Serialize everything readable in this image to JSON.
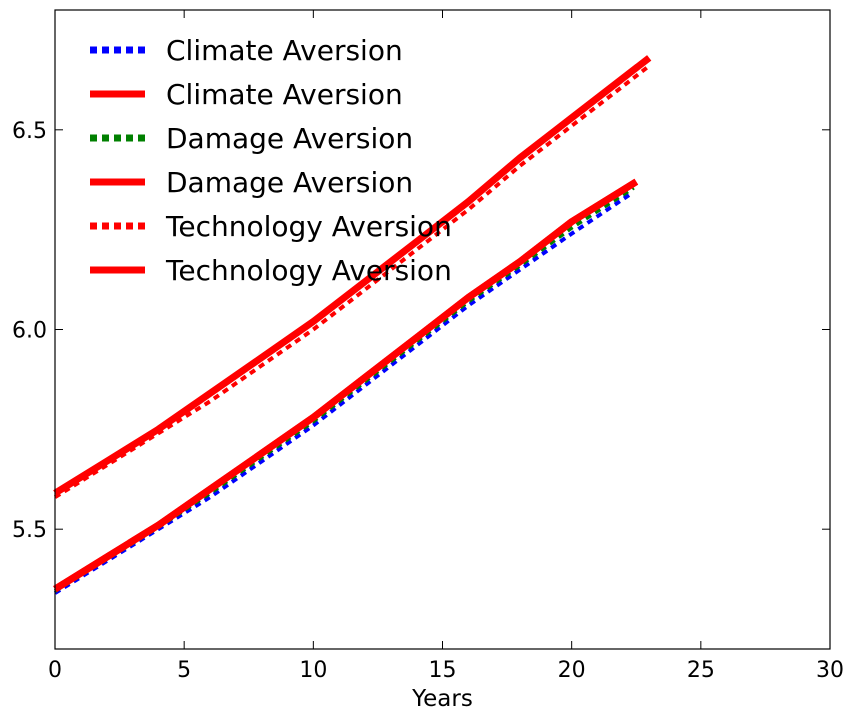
{
  "chart_data": {
    "type": "line",
    "title": "",
    "xlabel": "Years",
    "ylabel": "",
    "xlim": [
      0,
      30
    ],
    "ylim": [
      5.2,
      6.8
    ],
    "xticks": [
      0,
      5,
      10,
      15,
      20,
      25,
      30
    ],
    "yticks": [
      5.5,
      6.0,
      6.5
    ],
    "xtick_labels": [
      "0",
      "5",
      "10",
      "15",
      "20",
      "25",
      "30"
    ],
    "ytick_labels": [
      "5.5",
      "6.0",
      "6.5"
    ],
    "grid": false,
    "legend_position": "top-left",
    "series": [
      {
        "name": "Climate Aversion",
        "color": "#0000ff",
        "style": "dotted",
        "x": [
          0,
          2,
          4,
          6,
          8,
          10,
          12,
          14,
          16,
          18,
          20,
          22.3
        ],
        "y": [
          5.34,
          5.42,
          5.5,
          5.58,
          5.67,
          5.76,
          5.86,
          5.96,
          6.06,
          6.15,
          6.24,
          6.34
        ]
      },
      {
        "name": "Climate Aversion",
        "color": "#ff0000",
        "style": "solid",
        "x": [
          0,
          2,
          4,
          6,
          8,
          10,
          12,
          14,
          16,
          18,
          20,
          22.5
        ],
        "y": [
          5.35,
          5.43,
          5.51,
          5.6,
          5.69,
          5.78,
          5.88,
          5.98,
          6.08,
          6.17,
          6.27,
          6.37
        ]
      },
      {
        "name": "Damage Aversion",
        "color": "#008000",
        "style": "dotted",
        "x": [
          0,
          2,
          4,
          6,
          8,
          10,
          12,
          14,
          16,
          18,
          20,
          22.4
        ],
        "y": [
          5.345,
          5.425,
          5.505,
          5.59,
          5.68,
          5.77,
          5.87,
          5.97,
          6.07,
          6.16,
          6.255,
          6.355
        ]
      },
      {
        "name": "Damage Aversion",
        "color": "#ff0000",
        "style": "solid",
        "x": [
          0,
          2,
          4,
          6,
          8,
          10,
          12,
          14,
          16,
          18,
          20,
          22.5
        ],
        "y": [
          5.35,
          5.43,
          5.51,
          5.6,
          5.69,
          5.78,
          5.88,
          5.98,
          6.08,
          6.17,
          6.27,
          6.37
        ]
      },
      {
        "name": "Technology Aversion",
        "color": "#ff0000",
        "style": "dotted",
        "x": [
          0,
          2,
          4,
          6,
          8,
          10,
          12,
          14,
          16,
          18,
          20,
          23
        ],
        "y": [
          5.58,
          5.66,
          5.74,
          5.82,
          5.91,
          6.0,
          6.1,
          6.2,
          6.3,
          6.41,
          6.51,
          6.66
        ]
      },
      {
        "name": "Technology Aversion",
        "color": "#ff0000",
        "style": "solid",
        "x": [
          0,
          2,
          4,
          6,
          8,
          10,
          12,
          14,
          16,
          18,
          20,
          23
        ],
        "y": [
          5.59,
          5.67,
          5.75,
          5.84,
          5.93,
          6.02,
          6.12,
          6.22,
          6.32,
          6.43,
          6.53,
          6.68
        ]
      }
    ]
  }
}
